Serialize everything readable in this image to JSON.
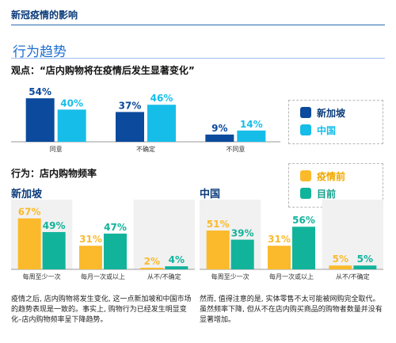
{
  "header": {
    "title": "新冠疫情的影响"
  },
  "section_title": "行为趋势",
  "colors": {
    "singapore": "#0b4a9c",
    "china": "#16bde9",
    "pre": "#fbba2b",
    "now": "#12b39b",
    "region_text": "#0b3c7a",
    "baseline": "#9a9a9a",
    "zebra": "#f1f1f1"
  },
  "legend_top": {
    "items": [
      {
        "label": "新加坡",
        "color": "#0b4a9c",
        "text_color": "#0b3c7a"
      },
      {
        "label": "中国",
        "color": "#16bde9",
        "text_color": "#16bde9"
      }
    ]
  },
  "legend_bottom": {
    "items": [
      {
        "label": "疫情前",
        "color": "#fbba2b",
        "text_color": "#f0a800"
      },
      {
        "label": "目前",
        "color": "#12b39b",
        "text_color": "#12a08b"
      }
    ]
  },
  "chart_data": [
    {
      "type": "bar",
      "title": "观点：“店内购物将在疫情后发生显著变化”",
      "categories": [
        "同意",
        "不确定",
        "不同意"
      ],
      "series": [
        {
          "name": "新加坡",
          "values": [
            54,
            37,
            9
          ]
        },
        {
          "name": "中国",
          "values": [
            40,
            46,
            14
          ]
        }
      ],
      "value_suffix": "%",
      "ylim": [
        0,
        60
      ],
      "grid": false,
      "legend_position": "right"
    },
    {
      "type": "bar",
      "title": "行为：店内购物频率",
      "subtitle": "新加坡",
      "categories": [
        "每周至少一次",
        "每月一次或以上",
        "从不/不确定"
      ],
      "series": [
        {
          "name": "疫情前",
          "values": [
            67,
            31,
            2
          ]
        },
        {
          "name": "目前",
          "values": [
            49,
            47,
            4
          ]
        }
      ],
      "value_suffix": "%",
      "ylim": [
        0,
        75
      ],
      "grid": false
    },
    {
      "type": "bar",
      "subtitle": "中国",
      "categories": [
        "每周至少一次",
        "每月一次或以上",
        "从不/不确定"
      ],
      "series": [
        {
          "name": "疫情前",
          "values": [
            51,
            31,
            5
          ]
        },
        {
          "name": "目前",
          "values": [
            39,
            56,
            5
          ]
        }
      ],
      "value_suffix": "%",
      "ylim": [
        0,
        75
      ],
      "grid": false,
      "legend_position": "right"
    }
  ],
  "paragraphs": {
    "left": "疫情之后, 店内购物将发生变化, 这一点新加坡和中国市场的趋势表现是一致的。事实上, 购物行为已经发生明显变化–店内购物频率呈下降趋势。",
    "right": "然而, 值得注意的是, 实体零售不太可能被网购完全取代。虽然频率下降, 但从不在店内购买商品的购物者数量并没有显著增加。"
  }
}
